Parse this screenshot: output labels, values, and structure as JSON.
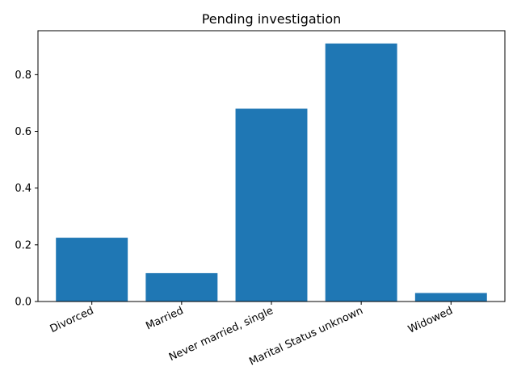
{
  "chart_data": {
    "type": "bar",
    "title": "Pending investigation",
    "xlabel": "",
    "ylabel": "",
    "categories": [
      "Divorced",
      "Married",
      "Never married, single",
      "Marital Status unknown",
      "Widowed"
    ],
    "values": [
      0.225,
      0.1,
      0.68,
      0.91,
      0.03
    ],
    "ylim": [
      0,
      0.955
    ],
    "yticks": [
      0.0,
      0.2,
      0.4,
      0.6,
      0.8
    ],
    "ytick_labels": [
      "0.0",
      "0.2",
      "0.4",
      "0.6",
      "0.8"
    ],
    "bar_color": "#1f77b4",
    "grid": false,
    "legend": "none"
  }
}
